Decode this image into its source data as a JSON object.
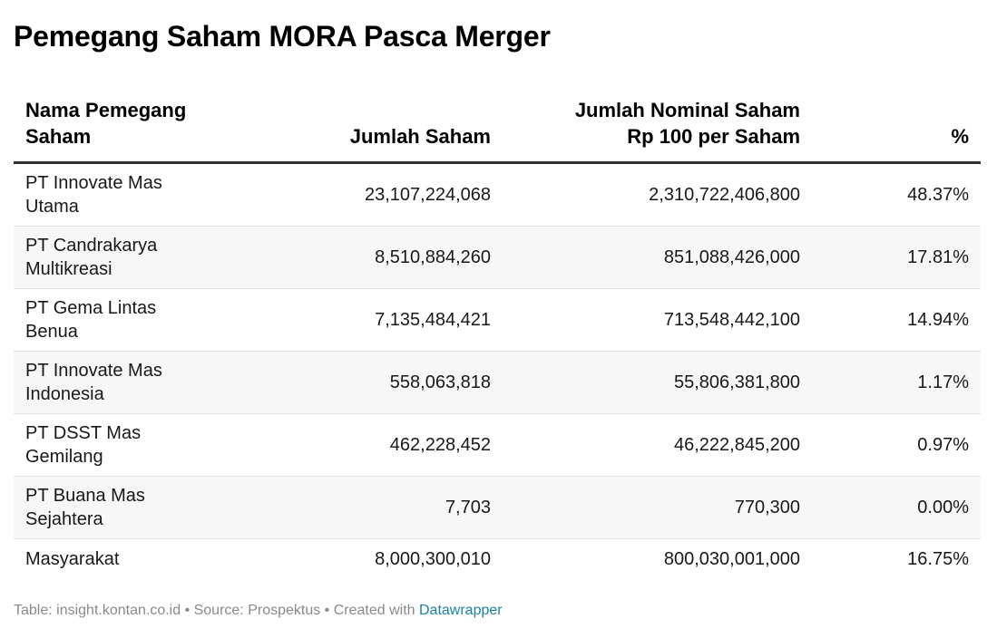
{
  "title": "Pemegang Saham MORA Pasca Merger",
  "chart_data": {
    "type": "table",
    "title": "Pemegang Saham MORA Pasca Merger",
    "columns": [
      {
        "label_line1": "Nama Pemegang",
        "label_line2": "Saham"
      },
      {
        "label_line1": "",
        "label_line2": "Jumlah Saham"
      },
      {
        "label_line1": "Jumlah Nominal Saham",
        "label_line2": "Rp 100 per Saham"
      },
      {
        "label_line1": "",
        "label_line2": "%"
      }
    ],
    "rows": [
      {
        "name": "PT Innovate Mas Utama",
        "shares": "23,107,224,068",
        "nominal": "2,310,722,406,800",
        "percent": "48.37%"
      },
      {
        "name": "PT Candrakarya Multikreasi",
        "shares": "8,510,884,260",
        "nominal": "851,088,426,000",
        "percent": "17.81%"
      },
      {
        "name": "PT Gema Lintas Benua",
        "shares": "7,135,484,421",
        "nominal": "713,548,442,100",
        "percent": "14.94%"
      },
      {
        "name": "PT Innovate Mas Indonesia",
        "shares": "558,063,818",
        "nominal": "55,806,381,800",
        "percent": "1.17%"
      },
      {
        "name": "PT DSST Mas Gemilang",
        "shares": "462,228,452",
        "nominal": "46,222,845,200",
        "percent": "0.97%"
      },
      {
        "name": "PT Buana Mas Sejahtera",
        "shares": "7,703",
        "nominal": "770,300",
        "percent": "0.00%"
      },
      {
        "name": "Masyarakat",
        "shares": "8,000,300,010",
        "nominal": "800,030,001,000",
        "percent": "16.75%"
      }
    ]
  },
  "footer": {
    "text": "Table: insight.kontan.co.id • Source: Prospektus • Created with ",
    "link_text": "Datawrapper"
  },
  "colors": {
    "header_rule": "#333333",
    "stripe": "#f7f7f7",
    "link": "#1d81a2"
  }
}
